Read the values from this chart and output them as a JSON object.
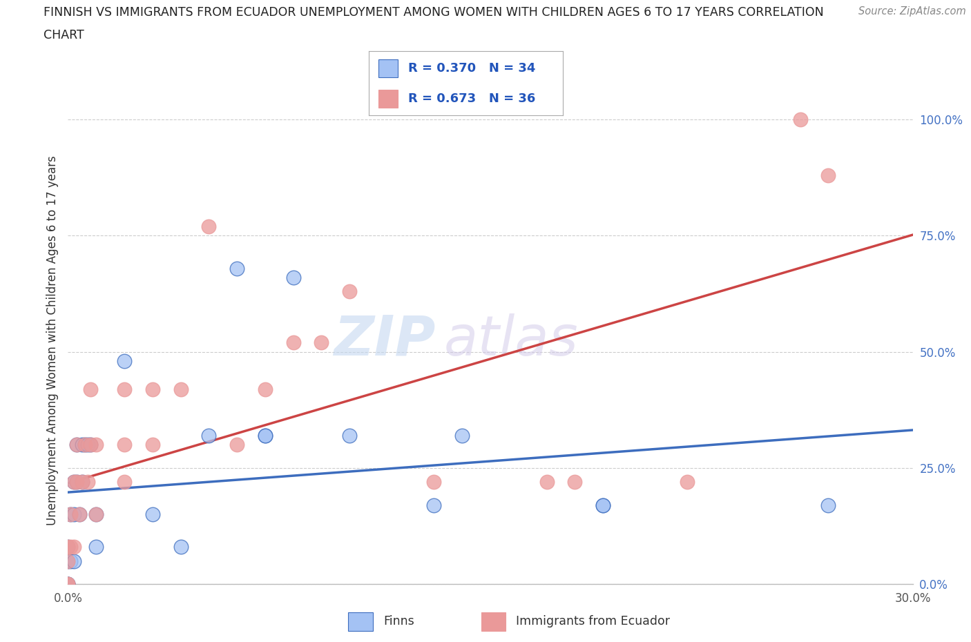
{
  "title_line1": "FINNISH VS IMMIGRANTS FROM ECUADOR UNEMPLOYMENT AMONG WOMEN WITH CHILDREN AGES 6 TO 17 YEARS CORRELATION",
  "title_line2": "CHART",
  "source": "Source: ZipAtlas.com",
  "ylabel": "Unemployment Among Women with Children Ages 6 to 17 years",
  "xlim": [
    0.0,
    0.3
  ],
  "ylim": [
    0.0,
    1.05
  ],
  "x_ticks": [
    0.0,
    0.05,
    0.1,
    0.15,
    0.2,
    0.25,
    0.3
  ],
  "x_tick_labels": [
    "0.0%",
    "",
    "",
    "",
    "",
    "",
    "30.0%"
  ],
  "y_ticks": [
    0.0,
    0.25,
    0.5,
    0.75,
    1.0
  ],
  "y_tick_labels": [
    "0.0%",
    "25.0%",
    "50.0%",
    "75.0%",
    "100.0%"
  ],
  "finns_R": 0.37,
  "finns_N": 34,
  "ecuador_R": 0.673,
  "ecuador_N": 36,
  "finns_color": "#a4c2f4",
  "ecuador_color": "#ea9999",
  "finns_line_color": "#3d6dbe",
  "ecuador_line_color": "#cc4444",
  "legend_finns_label": "Finns",
  "legend_ecuador_label": "Immigrants from Ecuador",
  "watermark_zip": "ZIP",
  "watermark_atlas": "atlas",
  "finns_x": [
    0.0,
    0.0,
    0.0,
    0.0,
    0.0,
    0.001,
    0.001,
    0.002,
    0.002,
    0.002,
    0.003,
    0.003,
    0.004,
    0.005,
    0.005,
    0.006,
    0.007,
    0.008,
    0.01,
    0.01,
    0.02,
    0.03,
    0.04,
    0.05,
    0.06,
    0.07,
    0.07,
    0.08,
    0.1,
    0.13,
    0.14,
    0.19,
    0.19,
    0.27
  ],
  "finns_y": [
    0.0,
    0.0,
    0.0,
    0.05,
    0.08,
    0.05,
    0.15,
    0.05,
    0.15,
    0.22,
    0.22,
    0.3,
    0.15,
    0.22,
    0.3,
    0.3,
    0.3,
    0.3,
    0.15,
    0.08,
    0.48,
    0.15,
    0.08,
    0.32,
    0.68,
    0.32,
    0.32,
    0.66,
    0.32,
    0.17,
    0.32,
    0.17,
    0.17,
    0.17
  ],
  "ecuador_x": [
    0.0,
    0.0,
    0.0,
    0.0,
    0.001,
    0.001,
    0.002,
    0.002,
    0.003,
    0.003,
    0.004,
    0.005,
    0.006,
    0.007,
    0.008,
    0.008,
    0.01,
    0.01,
    0.02,
    0.02,
    0.02,
    0.03,
    0.03,
    0.04,
    0.05,
    0.06,
    0.07,
    0.08,
    0.09,
    0.1,
    0.13,
    0.17,
    0.18,
    0.22,
    0.26,
    0.27
  ],
  "ecuador_y": [
    0.0,
    0.0,
    0.05,
    0.08,
    0.08,
    0.15,
    0.08,
    0.22,
    0.22,
    0.3,
    0.15,
    0.22,
    0.3,
    0.22,
    0.3,
    0.42,
    0.15,
    0.3,
    0.22,
    0.3,
    0.42,
    0.3,
    0.42,
    0.42,
    0.77,
    0.3,
    0.42,
    0.52,
    0.52,
    0.63,
    0.22,
    0.22,
    0.22,
    0.22,
    1.0,
    0.88
  ],
  "background_color": "#ffffff",
  "grid_color": "#cccccc"
}
